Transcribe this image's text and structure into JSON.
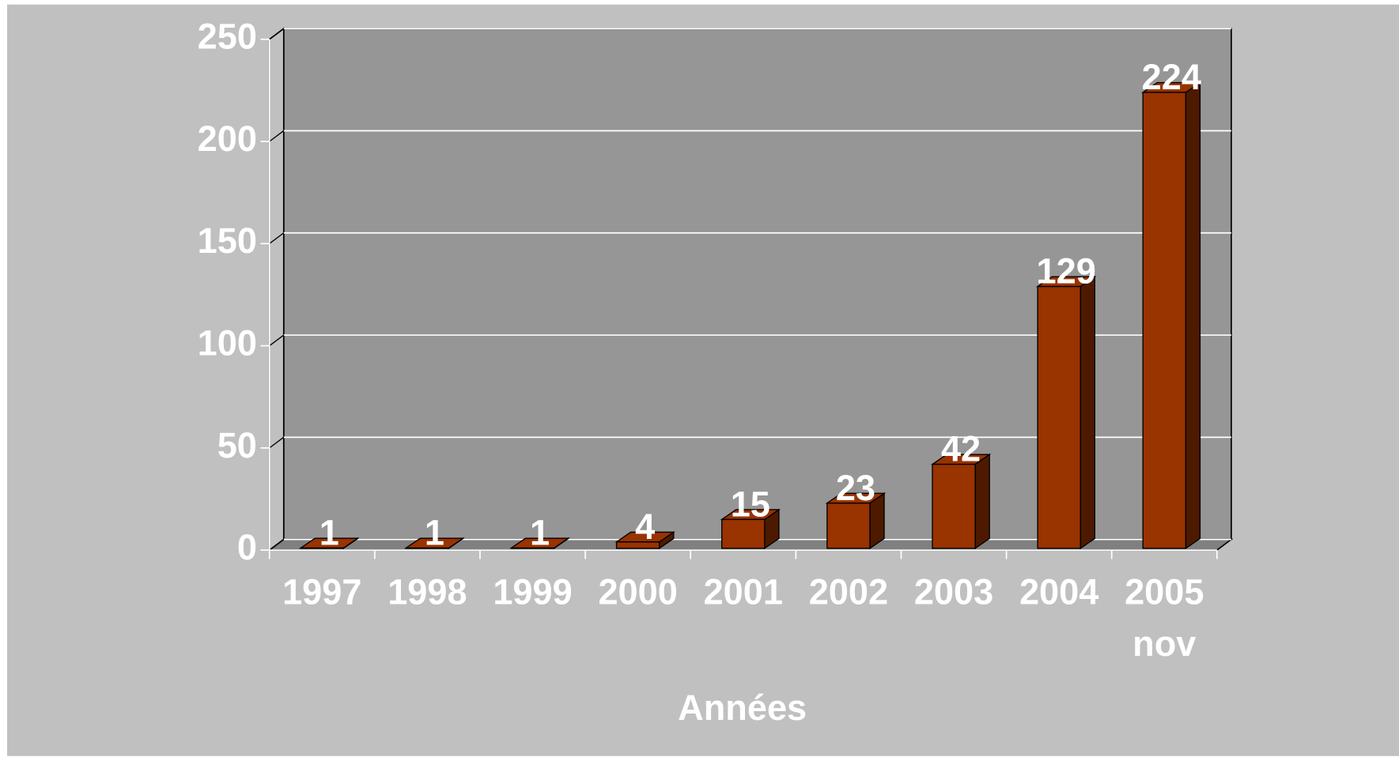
{
  "chart_data": {
    "type": "bar3d",
    "categories": [
      "1997",
      "1998",
      "1999",
      "2000",
      "2001",
      "2002",
      "2003",
      "2004",
      "2005\nnov"
    ],
    "values": [
      1,
      1,
      1,
      4,
      15,
      23,
      42,
      129,
      224
    ],
    "color": "#993300",
    "x_label": "Années",
    "ylim": [
      0,
      250
    ],
    "yticks": [
      0,
      50,
      100,
      150,
      200,
      250
    ],
    "grid": true
  }
}
